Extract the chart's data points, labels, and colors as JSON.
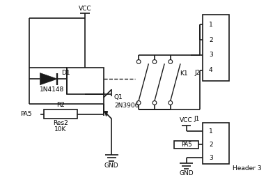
{
  "bg_color": "#ffffff",
  "line_color": "#1a1a1a",
  "line_width": 1.2,
  "text_color": "#000000",
  "labels": {
    "VCC_top": "VCC",
    "D1": "D1",
    "diode_name": "1N4148",
    "K1": "K1",
    "J2": "J2",
    "Q1": "Q1",
    "transistor_name": "2N3906",
    "PA5": "PA5",
    "R2": "R2",
    "res_name": "Res2",
    "res_val": "10K",
    "GND1": "GND",
    "VCC2": "VCC",
    "J1": "J1",
    "PA5_2": "PA5",
    "Header3": "Header 3",
    "GND2": "GND",
    "j2_pins": [
      "1",
      "2",
      "3",
      "4"
    ],
    "j1_pins": [
      "1",
      "2",
      "3"
    ]
  }
}
